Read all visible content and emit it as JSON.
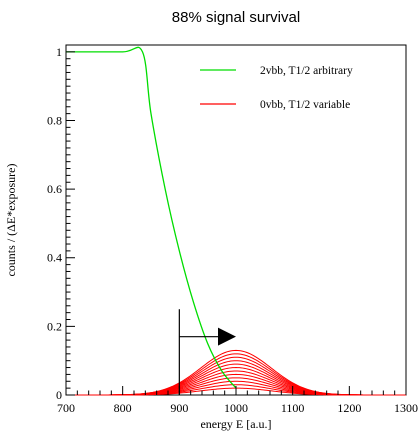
{
  "chart_data": {
    "type": "line",
    "title": "88% signal survival",
    "xlabel": "energy E [a.u.]",
    "ylabel": "counts / (ΔE*exposure)",
    "xlim": [
      700,
      1300
    ],
    "ylim": [
      0,
      1.02
    ],
    "x_ticks": [
      "700",
      "800",
      "900",
      "1000",
      "1100",
      "1200",
      "1300"
    ],
    "y_ticks": [
      "0",
      "0.2",
      "0.4",
      "0.6",
      "0.8",
      "1"
    ],
    "legend": {
      "placement": "top-right",
      "entries": [
        {
          "label": "2vbb, T1/2 arbitrary",
          "color": "#00dd00"
        },
        {
          "label": "0vbb, T1/2 variable",
          "color": "#ff0000"
        }
      ]
    },
    "series": [
      {
        "name": "2vbb, T1/2 arbitrary",
        "color": "#00dd00",
        "x": [
          700,
          800,
          835,
          850,
          875,
          900,
          925,
          950,
          975,
          1000
        ],
        "y": [
          1.0,
          1.0,
          1.0,
          0.82,
          0.6,
          0.42,
          0.27,
          0.15,
          0.07,
          0.02
        ]
      },
      {
        "name": "0vbb, T1/2 variable",
        "color": "#ff0000",
        "mean": 1000,
        "sigma": 62,
        "amplitudes": [
          0.13,
          0.12,
          0.11,
          0.1,
          0.09,
          0.08,
          0.07,
          0.06,
          0.05,
          0.04,
          0.03,
          0.02
        ]
      }
    ],
    "annotation": {
      "cut_energy": 900,
      "marker_top": 0.25,
      "arrow_y": 0.17,
      "arrow_to": 1000
    }
  }
}
